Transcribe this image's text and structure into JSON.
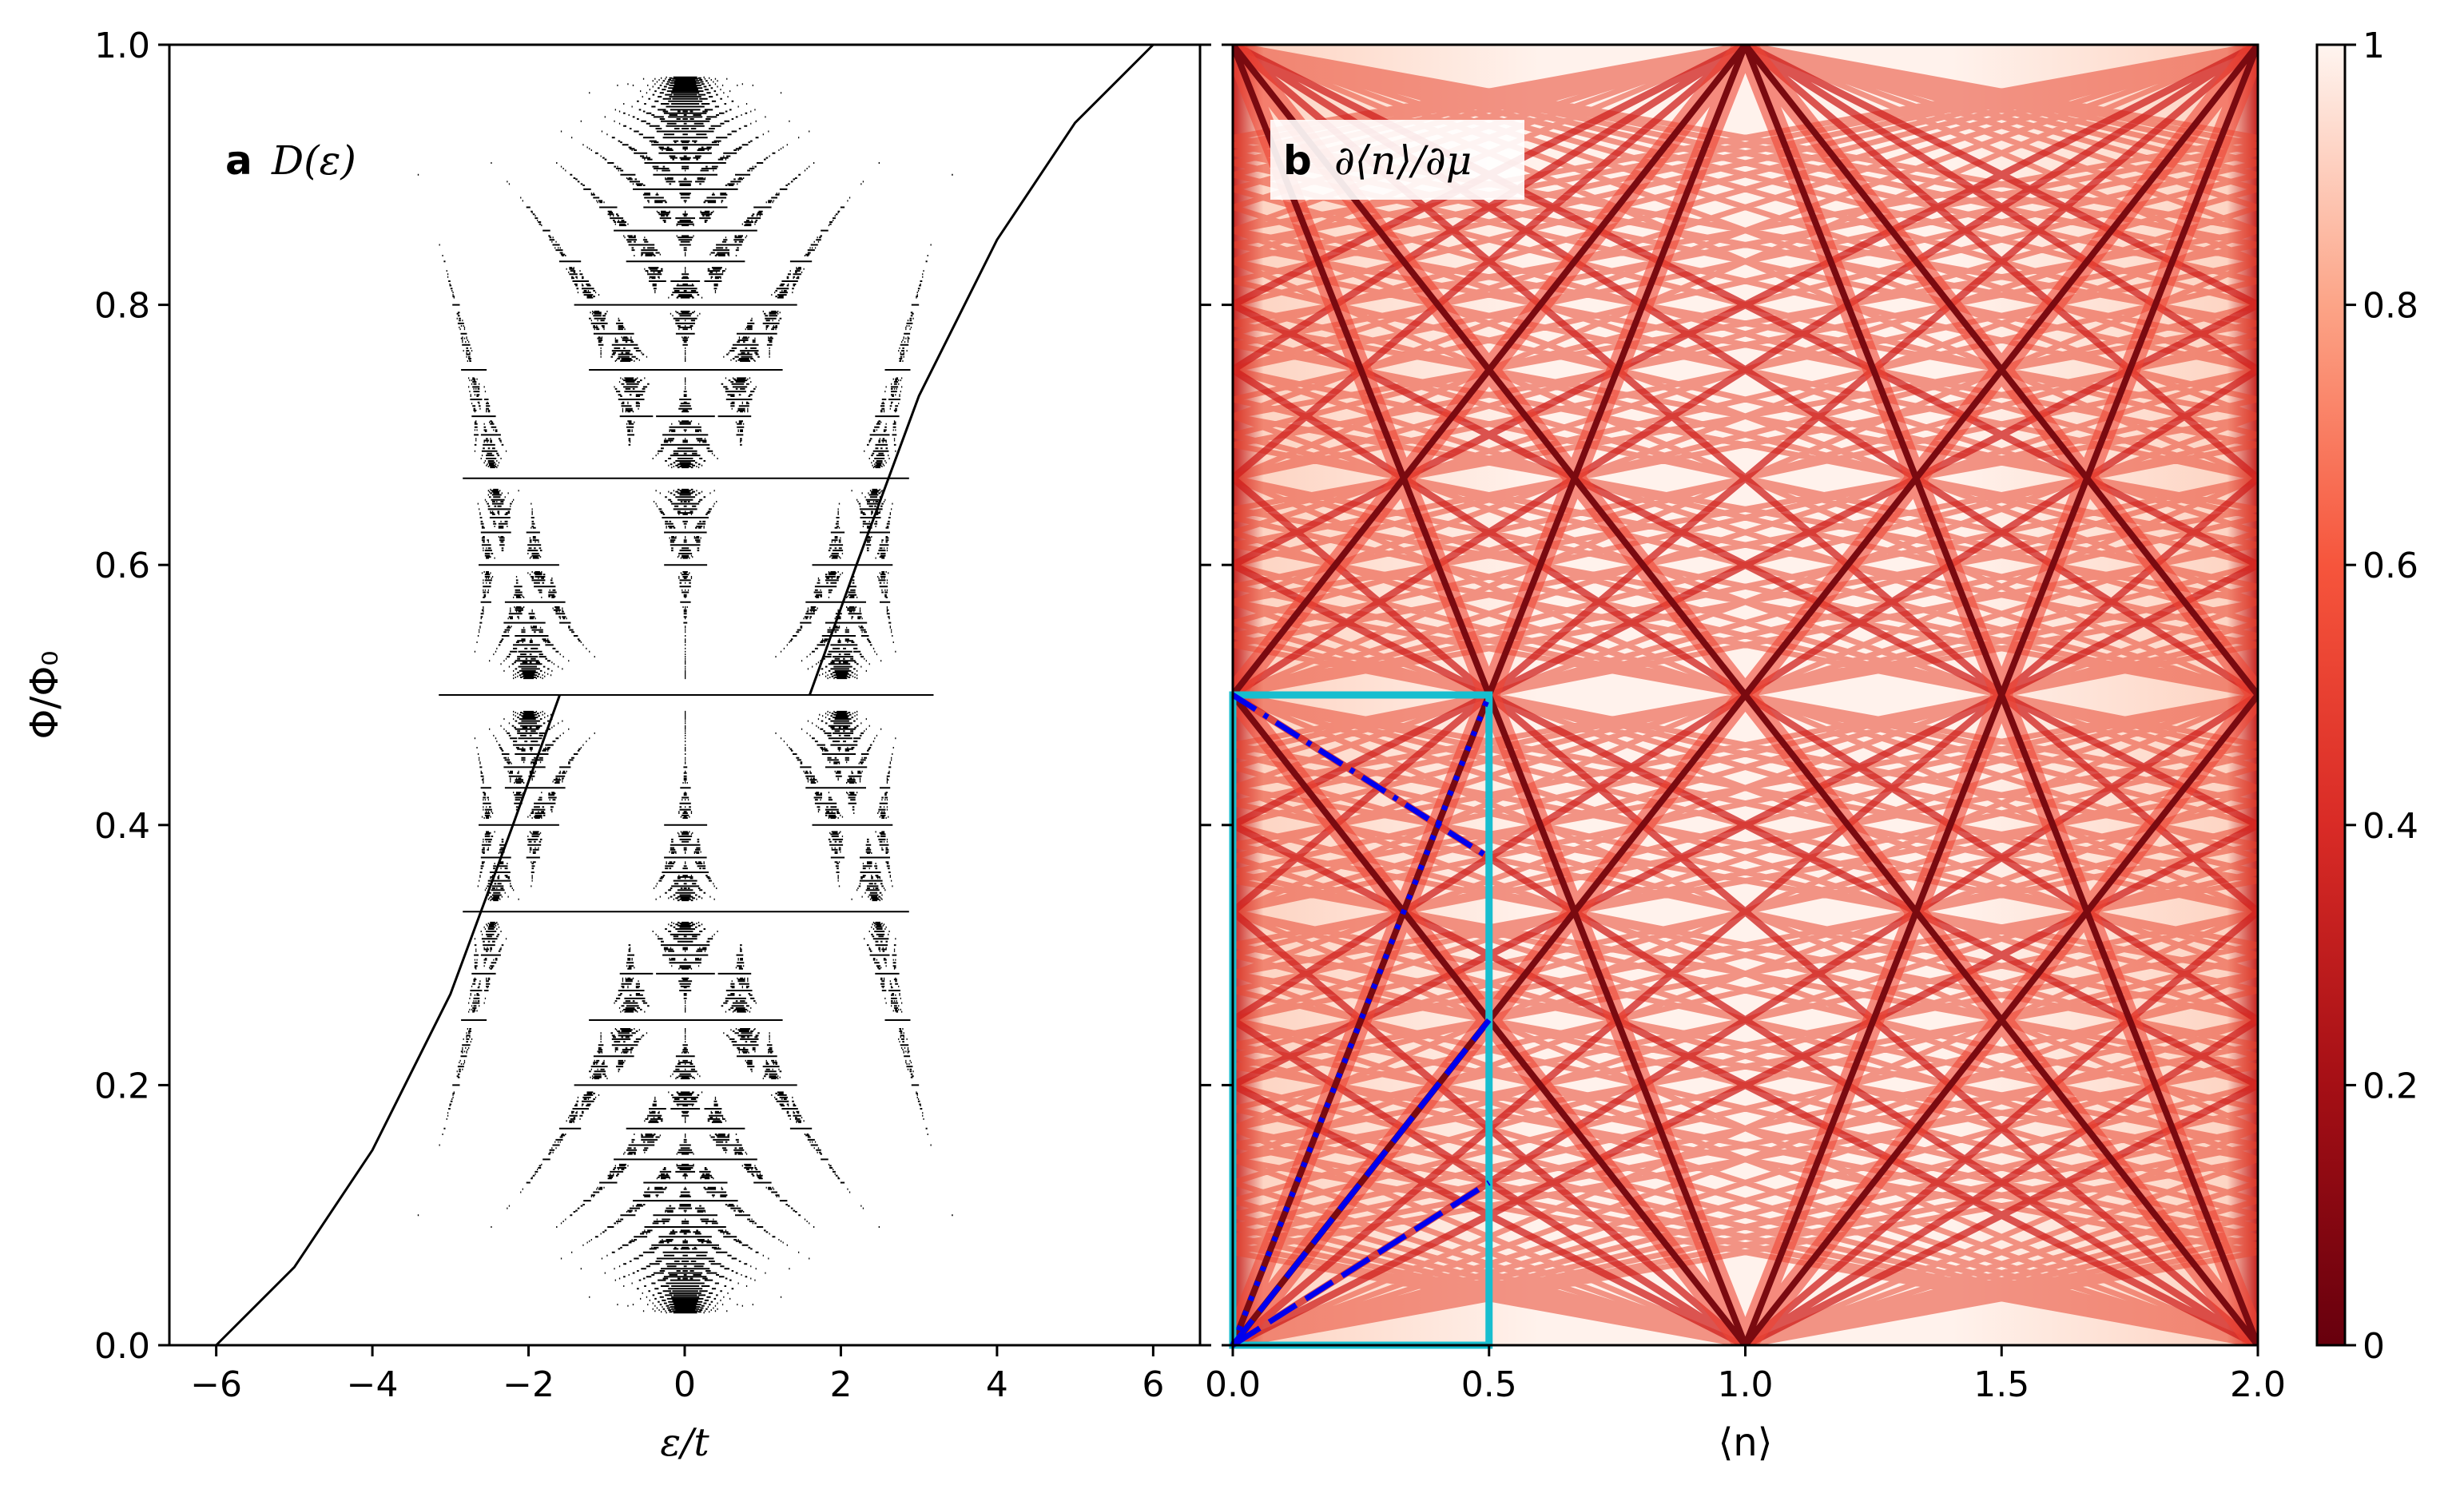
{
  "chart_data": [
    {
      "type": "scatter",
      "panel_letter": "a",
      "panel_title": "D(ε)",
      "xlabel": "ε/t",
      "ylabel": "Φ/Φ₀",
      "xlim": [
        -6.6,
        6.6
      ],
      "ylim": [
        0.0,
        1.0
      ],
      "xticks": [
        "−6",
        "−4",
        "−2",
        "0",
        "2",
        "4",
        "6"
      ],
      "xtick_values": [
        -6,
        -4,
        -2,
        0,
        2,
        4,
        6
      ],
      "yticks": [
        "0.0",
        "0.2",
        "0.4",
        "0.6",
        "0.8",
        "1.0"
      ],
      "ytick_values": [
        0.0,
        0.2,
        0.4,
        0.6,
        0.8,
        1.0
      ],
      "grid": false,
      "series": [
        {
          "key": "band-edge-lower-envelope",
          "points": [
            [
              -6,
              0.0
            ],
            [
              -5.0,
              0.06
            ],
            [
              -4.0,
              0.15
            ],
            [
              -3.0,
              0.27
            ],
            [
              -2.2,
              0.4
            ],
            [
              -1.6,
              0.5
            ]
          ]
        },
        {
          "key": "band-edge-upper-envelope",
          "points": [
            [
              6,
              1.0
            ],
            [
              5.0,
              0.94
            ],
            [
              4.0,
              0.85
            ],
            [
              3.0,
              0.73
            ],
            [
              2.2,
              0.6
            ],
            [
              1.6,
              0.5
            ]
          ]
        }
      ],
      "hofstadter_q_max": 40,
      "color": "#000000"
    },
    {
      "type": "heatmap",
      "panel_letter": "b",
      "panel_title": "∂⟨n⟩/∂μ",
      "xlabel": "⟨n⟩",
      "ylabel": "",
      "xlim": [
        0.0,
        2.0
      ],
      "ylim": [
        0.0,
        1.0
      ],
      "xticks": [
        "0.0",
        "0.5",
        "1.0",
        "1.5",
        "2.0"
      ],
      "xtick_values": [
        0.0,
        0.5,
        1.0,
        1.5,
        2.0
      ],
      "colorbar": {
        "ticks": [
          "0",
          "0.2",
          "0.4",
          "0.6",
          "0.8",
          "1"
        ],
        "tick_values": [
          0,
          0.2,
          0.4,
          0.6,
          0.8,
          1.0
        ],
        "colormap": "Reds_r",
        "color_low": "#67000d",
        "color_mid": "#ef3b2c",
        "color_high": "#fff5f0"
      },
      "inset_box": {
        "x": [
          0.0,
          0.5
        ],
        "y": [
          0.0,
          0.5
        ],
        "color": "#17becf"
      },
      "overlay_lines": [
        {
          "style": "dotted",
          "color": "#0000ee",
          "points": [
            [
              0.0,
              0.0
            ],
            [
              0.5,
              0.5
            ]
          ]
        },
        {
          "style": "dashed",
          "color": "#0000ee",
          "points": [
            [
              0.0,
              0.0
            ],
            [
              0.5,
              0.25
            ]
          ]
        },
        {
          "style": "dashed",
          "color": "#0000ee",
          "points": [
            [
              0.0,
              0.0
            ],
            [
              0.5,
              0.125
            ]
          ]
        },
        {
          "style": "dashdot",
          "color": "#0000ee",
          "points": [
            [
              0.0,
              0.5
            ],
            [
              0.5,
              0.375
            ]
          ]
        }
      ]
    }
  ]
}
